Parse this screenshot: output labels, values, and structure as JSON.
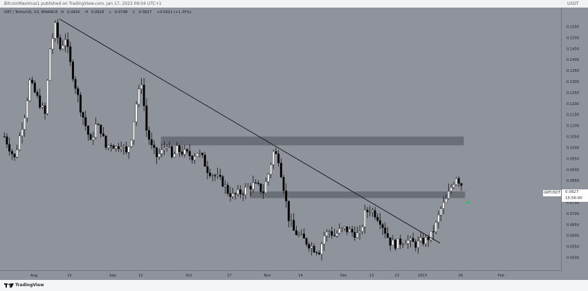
{
  "header": {
    "publisher": "BitcoinMaximus1 published on TradingView.com, Jan 17, 2023 09:04 UTC+1",
    "currency": "USDT"
  },
  "legend": {
    "symbol": "GRT / TetherUS, 1D, BINANCE",
    "open_label": "O",
    "open": "0.0816",
    "high_label": "H",
    "high": "0.0828",
    "low_label": "L",
    "low": "0.0798",
    "close_label": "C",
    "close": "0.0827",
    "change": "+0.0011 (+1.35%)"
  },
  "price_labels": {
    "symbol": "GRTUSDT",
    "last_price": "0.0827",
    "countdown": "15:56:00"
  },
  "footer": {
    "brand": "TradingView"
  },
  "colors": {
    "background": "#8f939b",
    "up": "#ffffff",
    "down": "#000000",
    "zone": "#686c74",
    "trendline": "#0f0f12",
    "arrow": "#22c55e"
  },
  "chart_data": {
    "type": "candlestick",
    "symbol": "GRT / TetherUS",
    "timeframe": "1D",
    "exchange": "BINANCE",
    "ylim": [
      0.045,
      0.16
    ],
    "y_ticks": [
      "0.1550",
      "0.1500",
      "0.1450",
      "0.1400",
      "0.1350",
      "0.1300",
      "0.1250",
      "0.1200",
      "0.1150",
      "0.1100",
      "0.1050",
      "0.1000",
      "0.0950",
      "0.0900",
      "0.0850",
      "0.0800",
      "0.0750",
      "0.0700",
      "0.0650",
      "0.0600",
      "0.0550",
      "0.0500"
    ],
    "x_ticks": [
      {
        "label": "Aug",
        "day": 12
      },
      {
        "label": "15",
        "day": 26
      },
      {
        "label": "Sep",
        "day": 43
      },
      {
        "label": "12",
        "day": 54
      },
      {
        "label": "Oct",
        "day": 73
      },
      {
        "label": "17",
        "day": 89
      },
      {
        "label": "Nov",
        "day": 104
      },
      {
        "label": "14",
        "day": 117
      },
      {
        "label": "Dec",
        "day": 134
      },
      {
        "label": "12",
        "day": 145
      },
      {
        "label": "22",
        "day": 155
      },
      {
        "label": "2023",
        "day": 165
      },
      {
        "label": "16",
        "day": 180
      },
      {
        "label": "Feb",
        "day": 196
      }
    ],
    "anchors": [
      [
        0,
        0.105
      ],
      [
        2,
        0.1
      ],
      [
        4,
        0.095
      ],
      [
        6,
        0.105
      ],
      [
        8,
        0.115
      ],
      [
        10,
        0.13
      ],
      [
        12,
        0.125
      ],
      [
        14,
        0.12
      ],
      [
        16,
        0.115
      ],
      [
        18,
        0.145
      ],
      [
        20,
        0.155
      ],
      [
        22,
        0.145
      ],
      [
        24,
        0.15
      ],
      [
        26,
        0.138
      ],
      [
        28,
        0.128
      ],
      [
        30,
        0.118
      ],
      [
        32,
        0.11
      ],
      [
        34,
        0.102
      ],
      [
        36,
        0.11
      ],
      [
        38,
        0.108
      ],
      [
        40,
        0.1
      ],
      [
        42,
        0.102
      ],
      [
        44,
        0.1
      ],
      [
        46,
        0.102
      ],
      [
        48,
        0.097
      ],
      [
        50,
        0.105
      ],
      [
        52,
        0.12
      ],
      [
        54,
        0.13
      ],
      [
        56,
        0.108
      ],
      [
        58,
        0.1
      ],
      [
        60,
        0.096
      ],
      [
        62,
        0.098
      ],
      [
        64,
        0.102
      ],
      [
        66,
        0.095
      ],
      [
        68,
        0.099
      ],
      [
        70,
        0.098
      ],
      [
        72,
        0.097
      ],
      [
        74,
        0.096
      ],
      [
        76,
        0.098
      ],
      [
        78,
        0.095
      ],
      [
        80,
        0.09
      ],
      [
        82,
        0.088
      ],
      [
        84,
        0.086
      ],
      [
        86,
        0.084
      ],
      [
        88,
        0.08
      ],
      [
        90,
        0.078
      ],
      [
        92,
        0.079
      ],
      [
        94,
        0.08
      ],
      [
        96,
        0.082
      ],
      [
        98,
        0.083
      ],
      [
        100,
        0.082
      ],
      [
        102,
        0.08
      ],
      [
        104,
        0.088
      ],
      [
        106,
        0.098
      ],
      [
        108,
        0.095
      ],
      [
        110,
        0.082
      ],
      [
        112,
        0.068
      ],
      [
        114,
        0.062
      ],
      [
        116,
        0.06
      ],
      [
        118,
        0.058
      ],
      [
        120,
        0.056
      ],
      [
        122,
        0.054
      ],
      [
        124,
        0.053
      ],
      [
        126,
        0.06
      ],
      [
        128,
        0.062
      ],
      [
        130,
        0.06
      ],
      [
        132,
        0.062
      ],
      [
        134,
        0.063
      ],
      [
        136,
        0.062
      ],
      [
        138,
        0.061
      ],
      [
        140,
        0.06
      ],
      [
        142,
        0.07
      ],
      [
        144,
        0.072
      ],
      [
        146,
        0.07
      ],
      [
        148,
        0.067
      ],
      [
        150,
        0.062
      ],
      [
        152,
        0.057
      ],
      [
        154,
        0.056
      ],
      [
        156,
        0.057
      ],
      [
        158,
        0.058
      ],
      [
        160,
        0.057
      ],
      [
        162,
        0.056
      ],
      [
        164,
        0.057
      ],
      [
        166,
        0.058
      ],
      [
        168,
        0.06
      ],
      [
        170,
        0.065
      ],
      [
        172,
        0.072
      ],
      [
        174,
        0.076
      ],
      [
        176,
        0.082
      ],
      [
        178,
        0.087
      ],
      [
        179,
        0.085
      ],
      [
        180,
        0.0827
      ]
    ],
    "resistance_zones": [
      {
        "low": 0.101,
        "high": 0.105
      },
      {
        "low": 0.077,
        "high": 0.08
      }
    ],
    "trendline": [
      {
        "day": 22,
        "price": 0.1585
      },
      {
        "day": 172,
        "price": 0.0565
      }
    ],
    "arrow": {
      "day": 183,
      "price": 0.0752,
      "direction": "up"
    }
  }
}
